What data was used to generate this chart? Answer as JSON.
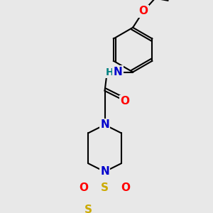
{
  "bg_color": "#e8e8e8",
  "bond_color": "#000000",
  "bond_width": 1.5,
  "atom_colors": {
    "N": "#0000cc",
    "O": "#ff0000",
    "S_thio": "#ccaa00",
    "S_sulfonyl": "#ccaa00",
    "H": "#008080",
    "C": "#000000"
  },
  "font_size_atom": 11,
  "fig_size": [
    3.0,
    3.0
  ],
  "dpi": 100
}
